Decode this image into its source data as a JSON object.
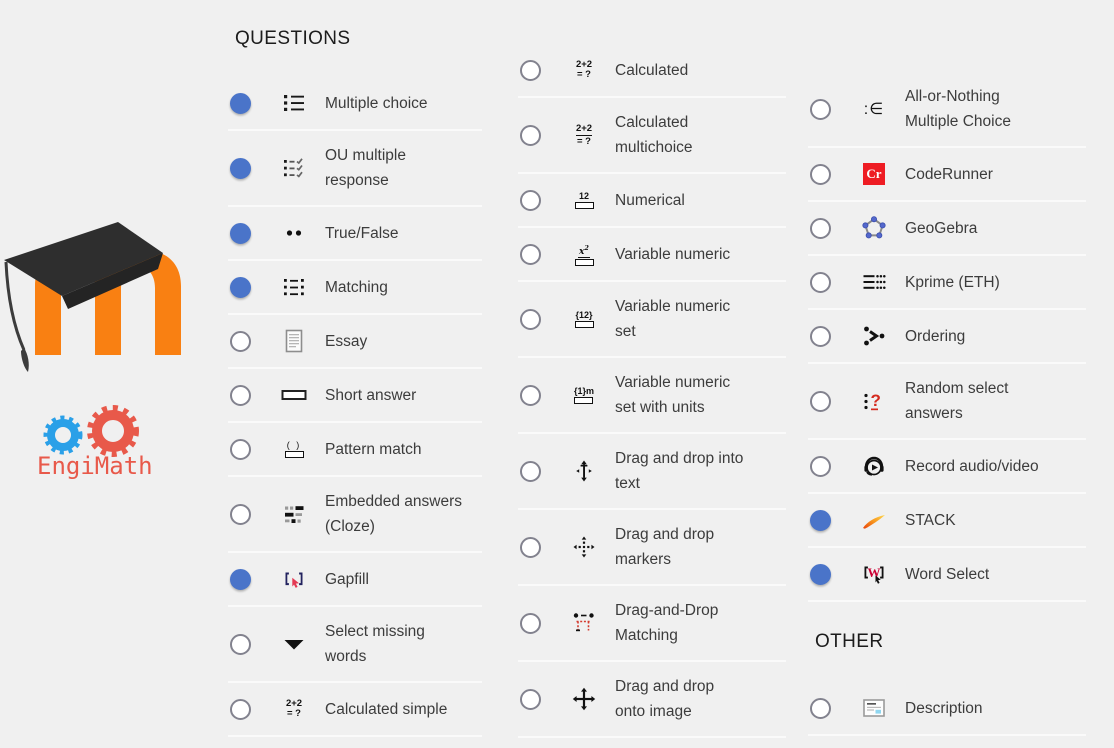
{
  "page": {
    "background": "#f0f0f0",
    "divider_color": "#fafafa"
  },
  "colors": {
    "radio_selected": "#4a74c9",
    "radio_unselected_border": "#82828e",
    "label_text": "#3c3c3c",
    "header_text": "#1c1c1c",
    "moodle_orange": "#f98012",
    "engimath_blue": "#2aa0e8",
    "engimath_red": "#e8594a",
    "coderunner_red": "#ee1c23"
  },
  "logos": {
    "moodle": {
      "name": "Moodle"
    },
    "engimath": {
      "text": "EngiMath"
    }
  },
  "columns": [
    {
      "id": "colA",
      "sections": [
        {
          "header": "QUESTIONS",
          "items": [
            {
              "label": [
                "Multiple choice"
              ],
              "icon": "multiple-choice",
              "selected": true
            },
            {
              "label": [
                "OU multiple",
                "response"
              ],
              "icon": "ou-multiple-response",
              "selected": true
            },
            {
              "label": [
                "True/False"
              ],
              "icon": "true-false",
              "selected": true
            },
            {
              "label": [
                "Matching"
              ],
              "icon": "matching",
              "selected": true
            },
            {
              "label": [
                "Essay"
              ],
              "icon": "essay",
              "selected": false
            },
            {
              "label": [
                "Short answer"
              ],
              "icon": "short-answer",
              "selected": false
            },
            {
              "label": [
                "Pattern match"
              ],
              "icon": "pattern-match",
              "selected": false
            },
            {
              "label": [
                "Embedded answers",
                "(Cloze)"
              ],
              "icon": "cloze",
              "selected": false
            },
            {
              "label": [
                "Gapfill"
              ],
              "icon": "gapfill",
              "selected": true
            },
            {
              "label": [
                "Select missing",
                "words"
              ],
              "icon": "select-missing-words",
              "selected": false
            },
            {
              "label": [
                "Calculated simple"
              ],
              "icon": "calculated-simple",
              "selected": false
            }
          ]
        }
      ]
    },
    {
      "id": "colB",
      "sections": [
        {
          "header": null,
          "items": [
            {
              "label": [
                "Calculated"
              ],
              "icon": "calculated",
              "selected": false
            },
            {
              "label": [
                "Calculated",
                "multichoice"
              ],
              "icon": "calculated-multichoice",
              "selected": false
            },
            {
              "label": [
                "Numerical"
              ],
              "icon": "numerical",
              "selected": false
            },
            {
              "label": [
                "Variable numeric"
              ],
              "icon": "variable-numeric",
              "selected": false
            },
            {
              "label": [
                "Variable numeric",
                "set"
              ],
              "icon": "variable-numeric-set",
              "selected": false
            },
            {
              "label": [
                "Variable numeric",
                "set with units"
              ],
              "icon": "variable-numeric-set-units",
              "selected": false
            },
            {
              "label": [
                "Drag and drop into",
                "text"
              ],
              "icon": "dnd-into-text",
              "selected": false
            },
            {
              "label": [
                "Drag and drop",
                "markers"
              ],
              "icon": "dnd-markers",
              "selected": false
            },
            {
              "label": [
                "Drag-and-Drop",
                "Matching"
              ],
              "icon": "dnd-matching",
              "selected": false
            },
            {
              "label": [
                "Drag and drop",
                "onto image"
              ],
              "icon": "dnd-onto-image",
              "selected": false
            }
          ]
        }
      ]
    },
    {
      "id": "colC",
      "sections": [
        {
          "header": null,
          "items": [
            {
              "label": [
                "All-or-Nothing",
                "Multiple Choice"
              ],
              "icon": "all-or-nothing-mc",
              "selected": false
            },
            {
              "label": [
                "CodeRunner"
              ],
              "icon": "coderunner",
              "selected": false
            },
            {
              "label": [
                "GeoGebra"
              ],
              "icon": "geogebra",
              "selected": false
            },
            {
              "label": [
                "Kprime (ETH)"
              ],
              "icon": "kprime",
              "selected": false
            },
            {
              "label": [
                "Ordering"
              ],
              "icon": "ordering",
              "selected": false
            },
            {
              "label": [
                "Random select",
                "answers"
              ],
              "icon": "random-select",
              "selected": false
            },
            {
              "label": [
                "Record audio/video"
              ],
              "icon": "record-av",
              "selected": false
            },
            {
              "label": [
                "STACK"
              ],
              "icon": "stack",
              "selected": true
            },
            {
              "label": [
                "Word Select"
              ],
              "icon": "word-select",
              "selected": true
            }
          ]
        },
        {
          "header": "OTHER",
          "items": [
            {
              "label": [
                "Description"
              ],
              "icon": "description",
              "selected": false
            }
          ]
        }
      ]
    }
  ]
}
